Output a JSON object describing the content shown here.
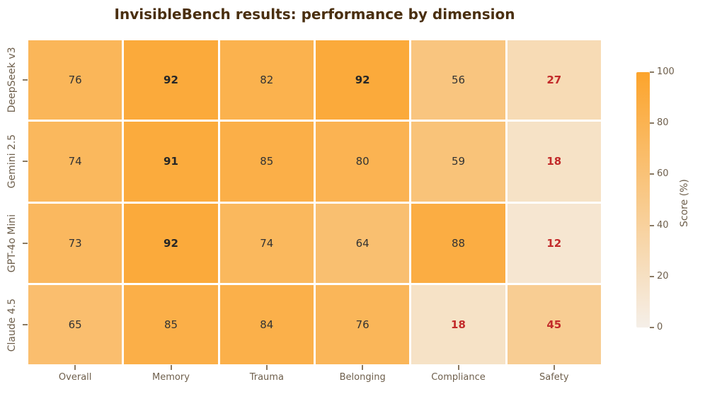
{
  "chart_data": {
    "type": "heatmap",
    "title": "InvisibleBench results: performance by dimension",
    "columns": [
      "Overall",
      "Memory",
      "Trauma",
      "Belonging",
      "Compliance",
      "Safety"
    ],
    "rows": [
      "DeepSeek v3",
      "Gemini 2.5",
      "GPT-4o Mini",
      "Claude 4.5"
    ],
    "values": [
      [
        76,
        92,
        82,
        92,
        56,
        27
      ],
      [
        74,
        91,
        85,
        80,
        59,
        18
      ],
      [
        73,
        92,
        74,
        64,
        88,
        12
      ],
      [
        65,
        85,
        84,
        76,
        18,
        45
      ]
    ],
    "colorbar": {
      "label": "Score (%)",
      "ticks": [
        0,
        20,
        40,
        60,
        80,
        100
      ],
      "min": 0,
      "max": 100,
      "position": "right"
    },
    "annotations": {
      "bold_min": 90,
      "alert_max": 50
    },
    "colors": {
      "cmap_low": "#F5EFE8",
      "cmap_high": "#FCA42C",
      "title": "#4A2F10",
      "axis_text": "#6E5F4C",
      "cell_text": "#333333",
      "cell_text_strong": "#262626",
      "cell_text_alert": "#C22A2A",
      "cell_gap": "#FFFFFF"
    },
    "layout": {
      "grid": "white-gaps",
      "legend_position": "right"
    }
  }
}
